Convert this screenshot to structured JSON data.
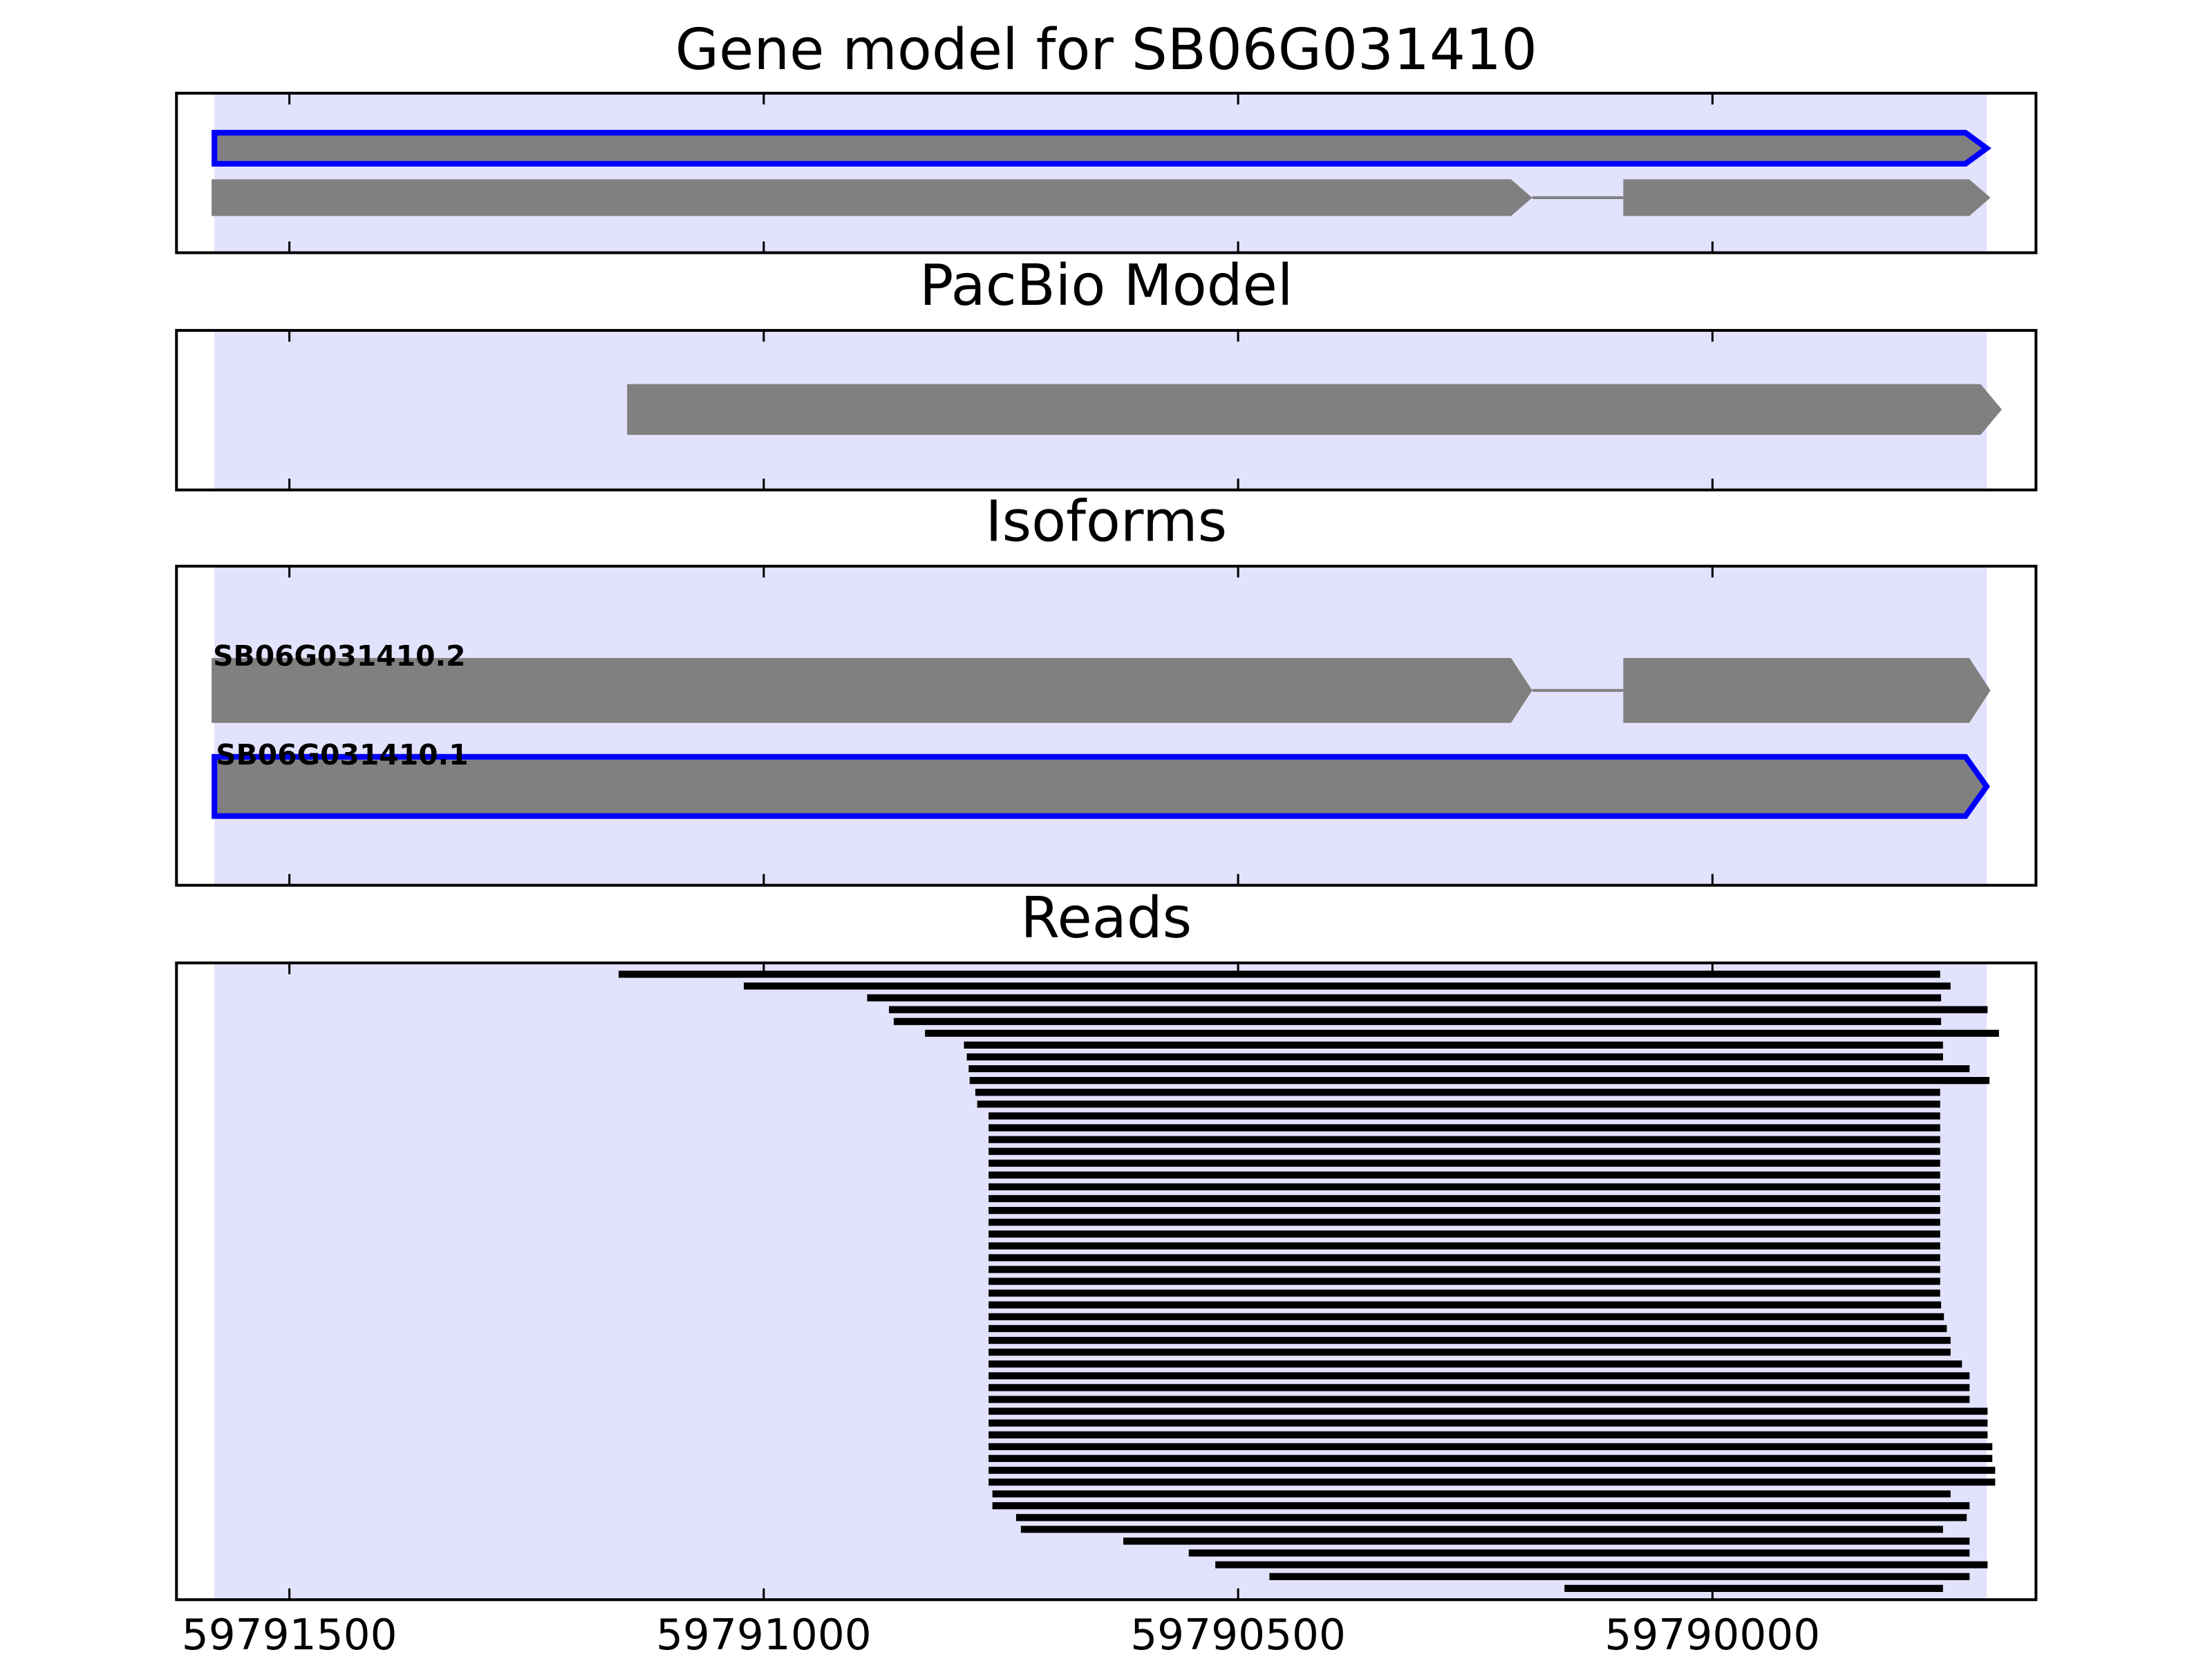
{
  "chart_data": [
    {
      "type": "gene-model",
      "title": "Gene model for SB06G031410",
      "highlight": [
        59791579,
        59789711
      ],
      "highlight_color": "#e2e2fd",
      "color": "#808080",
      "selected_color": "#0000ff",
      "features": [
        {
          "exons": [
            [
              59791579,
              59789711
            ]
          ],
          "selected": true
        },
        {
          "exons": [
            [
              59791582,
              59790190
            ],
            [
              59790094,
              59789707
            ]
          ]
        }
      ]
    },
    {
      "type": "gene-model",
      "title": "PacBio Model",
      "highlight": [
        59791579,
        59789711
      ],
      "highlight_color": "#e2e2fd",
      "color": "#808080",
      "selected_color": "#0000ff",
      "features": [
        {
          "exons": [
            [
              59791144,
              59789695
            ]
          ]
        }
      ]
    },
    {
      "type": "gene-model",
      "title": "Isoforms",
      "highlight": [
        59791579,
        59789711
      ],
      "highlight_color": "#e2e2fd",
      "color": "#808080",
      "selected_color": "#0000ff",
      "features": [
        {
          "name": "SB06G031410.2",
          "exons": [
            [
              59791582,
              59790190
            ],
            [
              59790094,
              59789707
            ]
          ]
        },
        {
          "name": "SB06G031410.1",
          "exons": [
            [
              59791579,
              59789711
            ]
          ],
          "selected": true
        }
      ]
    },
    {
      "type": "reads",
      "title": "Reads",
      "highlight": [
        59791579,
        59789711
      ],
      "highlight_color": "#e2e2fd",
      "color": "#000000",
      "xlim": [
        59791619,
        59789659
      ],
      "xticks": [
        59791500,
        59791000,
        59790500,
        59790000
      ],
      "reads": [
        [
          59791153,
          59789760
        ],
        [
          59791021,
          59789749
        ],
        [
          59790891,
          59789759
        ],
        [
          59790868,
          59789710
        ],
        [
          59790863,
          59789759
        ],
        [
          59790830,
          59789698
        ],
        [
          59790789,
          59789757
        ],
        [
          59790786,
          59789757
        ],
        [
          59790784,
          59789729
        ],
        [
          59790783,
          59789708
        ],
        [
          59790777,
          59789760
        ],
        [
          59790775,
          59789760
        ],
        [
          59790763,
          59789760
        ],
        [
          59790763,
          59789760
        ],
        [
          59790763,
          59789760
        ],
        [
          59790763,
          59789760
        ],
        [
          59790763,
          59789760
        ],
        [
          59790763,
          59789760
        ],
        [
          59790763,
          59789760
        ],
        [
          59790763,
          59789760
        ],
        [
          59790763,
          59789760
        ],
        [
          59790763,
          59789760
        ],
        [
          59790763,
          59789760
        ],
        [
          59790763,
          59789760
        ],
        [
          59790763,
          59789760
        ],
        [
          59790763,
          59789760
        ],
        [
          59790763,
          59789760
        ],
        [
          59790763,
          59789760
        ],
        [
          59790763,
          59789759
        ],
        [
          59790763,
          59789756
        ],
        [
          59790763,
          59789753
        ],
        [
          59790763,
          59789749
        ],
        [
          59790763,
          59789749
        ],
        [
          59790763,
          59789737
        ],
        [
          59790763,
          59789729
        ],
        [
          59790763,
          59789729
        ],
        [
          59790763,
          59789729
        ],
        [
          59790763,
          59789710
        ],
        [
          59790763,
          59789710
        ],
        [
          59790763,
          59789710
        ],
        [
          59790763,
          59789705
        ],
        [
          59790763,
          59789705
        ],
        [
          59790763,
          59789702
        ],
        [
          59790763,
          59789702
        ],
        [
          59790759,
          59789749
        ],
        [
          59790759,
          59789729
        ],
        [
          59790734,
          59789732
        ],
        [
          59790729,
          59789757
        ],
        [
          59790621,
          59789729
        ],
        [
          59790552,
          59789729
        ],
        [
          59790524,
          59789710
        ],
        [
          59790467,
          59789729
        ],
        [
          59790156,
          59789757
        ]
      ]
    }
  ]
}
